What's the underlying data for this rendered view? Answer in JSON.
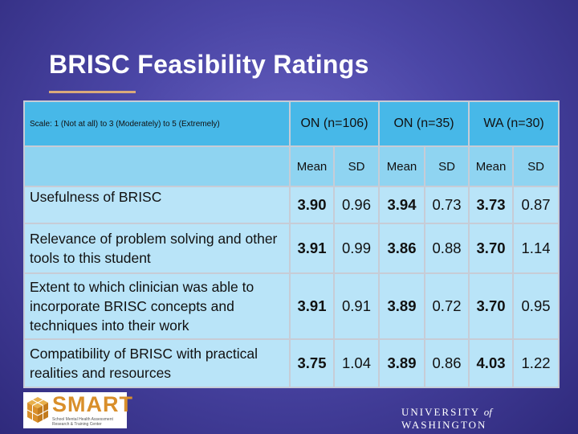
{
  "slide": {
    "title": "BRISC Feasibility Ratings"
  },
  "table": {
    "scale_note": "Scale: 1 (Not at all) to 3 (Moderately) to 5 (Extremely)",
    "groups": [
      "ON (n=106)",
      "ON (n=35)",
      "WA (n=30)"
    ],
    "subheaders": [
      "Mean",
      "SD",
      "Mean",
      "SD",
      "Mean",
      "SD"
    ],
    "rows": [
      {
        "label": "Usefulness of BRISC",
        "values": [
          "3.90",
          "0.96",
          "3.94",
          "0.73",
          "3.73",
          "0.87"
        ]
      },
      {
        "label": "Relevance of problem solving and other tools to this student",
        "values": [
          "3.91",
          "0.99",
          "3.86",
          "0.88",
          "3.70",
          "1.14"
        ]
      },
      {
        "label": "Extent to which clinician was able to incorporate BRISC concepts and techniques into their work",
        "values": [
          "3.91",
          "0.91",
          "3.89",
          "0.72",
          "3.70",
          "0.95"
        ]
      },
      {
        "label": "Compatibility of BRISC with practical realities and resources",
        "values": [
          "3.75",
          "1.04",
          "3.89",
          "0.86",
          "4.03",
          "1.22"
        ]
      }
    ]
  },
  "logo": {
    "name": "SMART",
    "subtitle": "School Mental Health Assessment Research & Training Center"
  },
  "footer": {
    "university_pre": "UNIVERSITY",
    "university_of": "of",
    "university_post": "WASHINGTON"
  },
  "colors": {
    "background": "#4b46a6",
    "header_fill": "#47b8e8",
    "row_fill_light": "#b9e4f8",
    "logo_accent": "#d98f2b"
  }
}
